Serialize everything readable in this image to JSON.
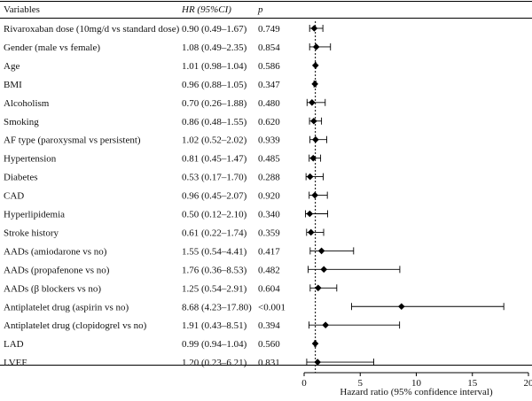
{
  "chart_data": {
    "type": "forest",
    "columns": {
      "variable": "Variables",
      "hr": "HR (95%CI)",
      "p": "p"
    },
    "rows": [
      {
        "label": "Rivaroxaban dose (10mg/d vs standard dose)",
        "hr_text": "0.90 (0.49–1.67)",
        "p": "0.749",
        "hr": 0.9,
        "lo": 0.49,
        "hi": 1.67
      },
      {
        "label": "Gender (male vs female)",
        "hr_text": "1.08 (0.49–2.35)",
        "p": "0.854",
        "hr": 1.08,
        "lo": 0.49,
        "hi": 2.35
      },
      {
        "label": "Age",
        "hr_text": "1.01 (0.98–1.04)",
        "p": "0.586",
        "hr": 1.01,
        "lo": 0.98,
        "hi": 1.04
      },
      {
        "label": "BMI",
        "hr_text": "0.96 (0.88–1.05)",
        "p": "0.347",
        "hr": 0.96,
        "lo": 0.88,
        "hi": 1.05
      },
      {
        "label": "Alcoholism",
        "hr_text": "0.70 (0.26–1.88)",
        "p": "0.480",
        "hr": 0.7,
        "lo": 0.26,
        "hi": 1.88
      },
      {
        "label": "Smoking",
        "hr_text": "0.86 (0.48–1.55)",
        "p": "0.620",
        "hr": 0.86,
        "lo": 0.48,
        "hi": 1.55
      },
      {
        "label": "AF type (paroxysmal vs persistent)",
        "hr_text": "1.02 (0.52–2.02)",
        "p": "0.939",
        "hr": 1.02,
        "lo": 0.52,
        "hi": 2.02
      },
      {
        "label": "Hypertension",
        "hr_text": "0.81 (0.45–1.47)",
        "p": "0.485",
        "hr": 0.81,
        "lo": 0.45,
        "hi": 1.47
      },
      {
        "label": "Diabetes",
        "hr_text": "0.53 (0.17–1.70)",
        "p": "0.288",
        "hr": 0.53,
        "lo": 0.17,
        "hi": 1.7
      },
      {
        "label": "CAD",
        "hr_text": "0.96 (0.45–2.07)",
        "p": "0.920",
        "hr": 0.96,
        "lo": 0.45,
        "hi": 2.07
      },
      {
        "label": "Hyperlipidemia",
        "hr_text": "0.50 (0.12–2.10)",
        "p": "0.340",
        "hr": 0.5,
        "lo": 0.12,
        "hi": 2.1
      },
      {
        "label": "Stroke history",
        "hr_text": "0.61 (0.22–1.74)",
        "p": "0.359",
        "hr": 0.61,
        "lo": 0.22,
        "hi": 1.74
      },
      {
        "label": "AADs (amiodarone vs no)",
        "hr_text": "1.55 (0.54–4.41)",
        "p": "0.417",
        "hr": 1.55,
        "lo": 0.54,
        "hi": 4.41
      },
      {
        "label": "AADs (propafenone vs no)",
        "hr_text": "1.76 (0.36–8.53)",
        "p": "0.482",
        "hr": 1.76,
        "lo": 0.36,
        "hi": 8.53
      },
      {
        "label": "AADs (β blockers vs no)",
        "hr_text": "1.25 (0.54–2.91)",
        "p": "0.604",
        "hr": 1.25,
        "lo": 0.54,
        "hi": 2.91
      },
      {
        "label": "Antiplatelet drug (aspirin vs no)",
        "hr_text": "8.68 (4.23–17.80)",
        "p": "<0.001",
        "hr": 8.68,
        "lo": 4.23,
        "hi": 17.8
      },
      {
        "label": "Antiplatelet drug (clopidogrel vs no)",
        "hr_text": "1.91 (0.43–8.51)",
        "p": "0.394",
        "hr": 1.91,
        "lo": 0.43,
        "hi": 8.51
      },
      {
        "label": "LAD",
        "hr_text": "0.99 (0.94–1.04)",
        "p": "0.560",
        "hr": 0.99,
        "lo": 0.94,
        "hi": 1.04
      },
      {
        "label": "LVEF",
        "hr_text": "1.20 (0.23–6.21)",
        "p": "0.831",
        "hr": 1.2,
        "lo": 0.23,
        "hi": 6.21
      }
    ],
    "xlabel": "Hazard ratio (95% confidence interval)",
    "xlim": [
      0,
      20
    ],
    "xticks": [
      0,
      5,
      10,
      15,
      20
    ],
    "reference_line": 1,
    "colors": {
      "marks": "#000000",
      "text": "#111111"
    }
  }
}
